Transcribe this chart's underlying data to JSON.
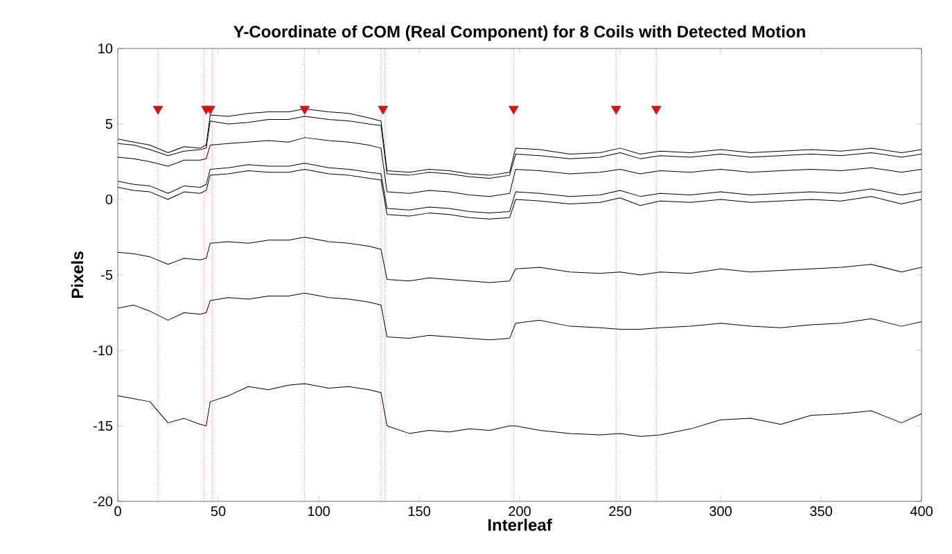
{
  "chart_data": {
    "type": "line",
    "title": "Y-Coordinate of COM (Real Component) for 8 Coils with Detected Motion",
    "xlabel": "Interleaf",
    "ylabel": "Pixels",
    "x": [
      0,
      8,
      16,
      25,
      33,
      41,
      44,
      46,
      55,
      65,
      75,
      85,
      93,
      105,
      115,
      125,
      131,
      134,
      145,
      155,
      165,
      175,
      185,
      195,
      198,
      210,
      225,
      240,
      250,
      260,
      270,
      285,
      300,
      315,
      330,
      345,
      360,
      375,
      390,
      400
    ],
    "series": [
      {
        "color": "#000000",
        "values": [
          4.0,
          3.8,
          3.6,
          3.1,
          3.5,
          3.4,
          3.6,
          5.6,
          5.5,
          5.7,
          5.8,
          5.8,
          6.0,
          5.8,
          5.7,
          5.4,
          5.2,
          1.9,
          1.8,
          2.0,
          1.9,
          1.7,
          1.6,
          1.8,
          3.4,
          3.3,
          3.0,
          3.1,
          3.4,
          3.0,
          3.2,
          3.1,
          3.3,
          3.1,
          3.2,
          3.3,
          3.2,
          3.4,
          3.1,
          3.3
        ]
      },
      {
        "color": "#000000",
        "values": [
          3.7,
          3.6,
          3.3,
          2.9,
          3.2,
          3.3,
          3.4,
          5.2,
          5.0,
          5.1,
          5.3,
          5.3,
          5.5,
          5.3,
          5.2,
          5.0,
          4.9,
          1.7,
          1.6,
          1.8,
          1.7,
          1.5,
          1.4,
          1.6,
          3.0,
          2.9,
          2.7,
          2.8,
          3.1,
          2.7,
          2.9,
          2.8,
          3.0,
          2.8,
          2.9,
          3.0,
          2.9,
          3.1,
          2.8,
          3.0
        ]
      },
      {
        "color": "#000000",
        "values": [
          2.8,
          2.7,
          2.5,
          2.2,
          2.6,
          2.6,
          2.7,
          3.6,
          3.7,
          3.8,
          3.9,
          3.8,
          4.1,
          3.9,
          3.8,
          3.6,
          3.4,
          0.5,
          0.4,
          0.6,
          0.5,
          0.3,
          0.2,
          0.4,
          2.0,
          1.9,
          1.7,
          1.8,
          2.0,
          1.7,
          1.9,
          1.8,
          2.0,
          1.8,
          1.9,
          2.0,
          1.9,
          2.1,
          1.8,
          2.0
        ]
      },
      {
        "color": "#000000",
        "values": [
          1.2,
          1.0,
          0.9,
          0.4,
          0.9,
          0.8,
          1.0,
          2.0,
          2.1,
          2.3,
          2.2,
          2.2,
          2.4,
          2.1,
          2.0,
          1.8,
          1.7,
          -0.6,
          -0.7,
          -0.5,
          -0.6,
          -0.8,
          -0.9,
          -0.8,
          0.5,
          0.4,
          0.2,
          0.3,
          0.6,
          0.2,
          0.4,
          0.3,
          0.5,
          0.3,
          0.4,
          0.5,
          0.4,
          0.7,
          0.3,
          0.5
        ]
      },
      {
        "color": "#000000",
        "values": [
          0.8,
          0.6,
          0.5,
          0.0,
          0.5,
          0.4,
          0.6,
          1.6,
          1.7,
          1.9,
          1.8,
          1.8,
          2.0,
          1.7,
          1.6,
          1.4,
          1.3,
          -1.0,
          -1.1,
          -0.9,
          -1.0,
          -1.2,
          -1.3,
          -1.2,
          0.0,
          -0.1,
          -0.3,
          -0.2,
          0.1,
          -0.4,
          -0.1,
          -0.2,
          0.0,
          -0.2,
          -0.1,
          0.0,
          -0.1,
          0.2,
          -0.3,
          0.0
        ]
      },
      {
        "color": "#000000",
        "values": [
          -3.5,
          -3.6,
          -3.8,
          -4.3,
          -3.9,
          -4.0,
          -3.9,
          -2.9,
          -2.8,
          -2.9,
          -2.7,
          -2.7,
          -2.5,
          -2.8,
          -2.9,
          -3.1,
          -3.3,
          -5.3,
          -5.4,
          -5.2,
          -5.3,
          -5.4,
          -5.5,
          -5.4,
          -4.6,
          -4.5,
          -4.8,
          -4.9,
          -4.8,
          -5.0,
          -4.8,
          -4.9,
          -4.6,
          -4.8,
          -4.7,
          -4.6,
          -4.5,
          -4.3,
          -4.8,
          -4.5
        ]
      },
      {
        "color": "#000000",
        "values": [
          -7.2,
          -7.0,
          -7.4,
          -8.0,
          -7.5,
          -7.6,
          -7.5,
          -6.7,
          -6.5,
          -6.6,
          -6.4,
          -6.4,
          -6.2,
          -6.5,
          -6.6,
          -6.8,
          -7.0,
          -9.1,
          -9.2,
          -9.0,
          -9.1,
          -9.2,
          -9.3,
          -9.2,
          -8.2,
          -8.0,
          -8.4,
          -8.5,
          -8.6,
          -8.6,
          -8.5,
          -8.4,
          -8.2,
          -8.4,
          -8.5,
          -8.3,
          -8.2,
          -7.9,
          -8.4,
          -8.1
        ]
      },
      {
        "color": "#000000",
        "values": [
          -13.0,
          -13.2,
          -13.4,
          -14.8,
          -14.5,
          -14.9,
          -15.0,
          -13.4,
          -13.0,
          -12.4,
          -12.6,
          -12.3,
          -12.2,
          -12.5,
          -12.4,
          -12.6,
          -12.8,
          -15.0,
          -15.5,
          -15.3,
          -15.4,
          -15.2,
          -15.3,
          -15.0,
          -15.0,
          -15.3,
          -15.5,
          -15.6,
          -15.5,
          -15.7,
          -15.6,
          -15.2,
          -14.6,
          -14.5,
          -14.9,
          -14.3,
          -14.2,
          -14.0,
          -14.8,
          -14.2
        ]
      },
      {
        "type": "scatter",
        "marker": "triangle",
        "color": "#ff0000",
        "x": [
          20,
          44,
          46,
          93,
          132,
          197,
          248,
          268
        ],
        "values": [
          6,
          6,
          6,
          6,
          6,
          6,
          6,
          6
        ]
      }
    ],
    "ref_lines": [
      {
        "axis": "x",
        "value": 20,
        "color": "#ff0000",
        "line_style": "dotted"
      },
      {
        "axis": "x",
        "value": 43,
        "color": "#ff0000",
        "line_style": "dotted"
      },
      {
        "axis": "x",
        "value": 47,
        "color": "#ff0000",
        "line_style": "dotted"
      },
      {
        "axis": "x",
        "value": 93,
        "color": "#ff0000",
        "line_style": "dotted"
      },
      {
        "axis": "x",
        "value": 131,
        "color": "#ff0000",
        "line_style": "dotted"
      },
      {
        "axis": "x",
        "value": 133,
        "color": "#ff0000",
        "line_style": "dotted"
      },
      {
        "axis": "x",
        "value": 197,
        "color": "#ff0000",
        "line_style": "dotted"
      },
      {
        "axis": "x",
        "value": 248,
        "color": "#ff0000",
        "line_style": "dotted"
      },
      {
        "axis": "x",
        "value": 268,
        "color": "#ff0000",
        "line_style": "dotted"
      }
    ],
    "xlim": [
      0,
      400
    ],
    "ylim": [
      -20,
      10
    ],
    "xticks": [
      0,
      50,
      100,
      150,
      200,
      250,
      300,
      350,
      400
    ],
    "yticks": [
      -20,
      -15,
      -10,
      -5,
      0,
      5,
      10
    ],
    "grid": false
  }
}
